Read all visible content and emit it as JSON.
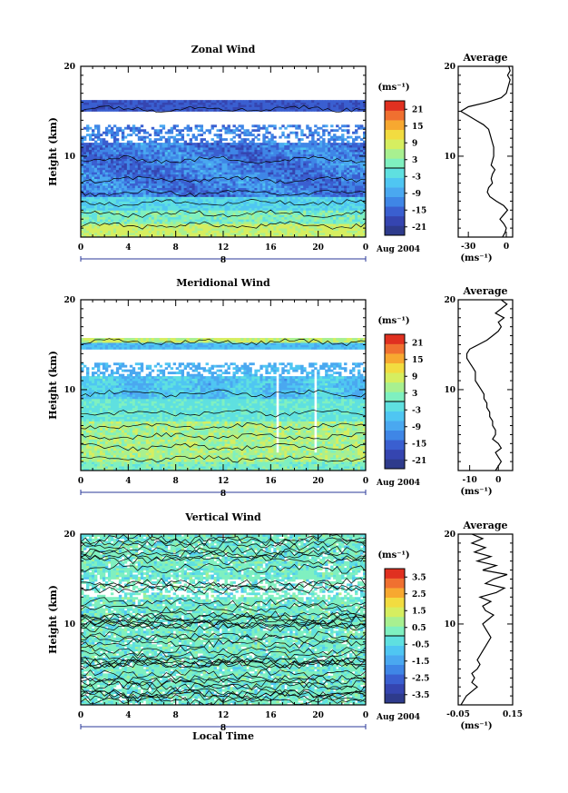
{
  "colors": {
    "scale": [
      "#2e3b8c",
      "#3545b0",
      "#3a5fd0",
      "#3f86e6",
      "#4aa8f0",
      "#4fc6f2",
      "#5fe0e0",
      "#7ff0c0",
      "#a8f090",
      "#d6ee60",
      "#f2dc40",
      "#f7a830",
      "#f07030",
      "#e03020"
    ],
    "missing": "#ffffff",
    "contour": "#000000"
  },
  "chart_data": [
    {
      "type": "heatmap",
      "title": "Zonal Wind",
      "xlabel": "",
      "ylabel": "Height (km)",
      "x_ticks": [
        "0",
        "4",
        "8",
        "12",
        "16",
        "20",
        "0"
      ],
      "y_ticks": [
        "10",
        "20"
      ],
      "xlim": [
        0,
        24
      ],
      "ylim": [
        1,
        20
      ],
      "date_ticks": [
        "8"
      ],
      "date_label": "Aug 2004",
      "colorbar": {
        "unit": "(ms⁻¹)",
        "ticks": [
          "21",
          "15",
          "9",
          "3",
          "-3",
          "-9",
          "-15",
          "-21"
        ],
        "range": [
          -21,
          21
        ]
      },
      "profile": {
        "title": "Average",
        "x_ticks": [
          "-30",
          "0"
        ],
        "xlim": [
          -38,
          5
        ],
        "unit": "(ms⁻¹)",
        "height": [
          1.0,
          1.5,
          2,
          2.5,
          3,
          3.5,
          4,
          4.5,
          5,
          5.5,
          6,
          6.5,
          7,
          7.5,
          8,
          8.5,
          9,
          9.5,
          10,
          10.5,
          11,
          11.5,
          12,
          12.5,
          13,
          13.5,
          14,
          14.5,
          15,
          15.5,
          16,
          16.5,
          17,
          17.5,
          18,
          18.5,
          19,
          19.5,
          20
        ],
        "value": [
          -3,
          -1,
          0,
          -2,
          -5,
          -2,
          1,
          -2,
          -8,
          -13,
          -15,
          -14,
          -11,
          -12,
          -11,
          -9,
          -12,
          -11,
          -10,
          -10,
          -10,
          -11,
          -12,
          -13,
          -14,
          -18,
          -24,
          -30,
          -36,
          -30,
          -15,
          -4,
          0,
          1,
          2,
          3,
          1,
          3,
          2
        ]
      }
    },
    {
      "type": "heatmap",
      "title": "Meridional Wind",
      "xlabel": "",
      "ylabel": "Height (km)",
      "x_ticks": [
        "0",
        "4",
        "8",
        "12",
        "16",
        "20",
        "0"
      ],
      "y_ticks": [
        "10",
        "20"
      ],
      "xlim": [
        0,
        24
      ],
      "ylim": [
        1,
        20
      ],
      "date_ticks": [
        "8"
      ],
      "date_label": "Aug 2004",
      "colorbar": {
        "unit": "(ms⁻¹)",
        "ticks": [
          "21",
          "15",
          "9",
          "3",
          "-3",
          "-9",
          "-15",
          "-21"
        ],
        "range": [
          -21,
          21
        ]
      },
      "profile": {
        "title": "Average",
        "x_ticks": [
          "-10",
          "0"
        ],
        "xlim": [
          -14,
          5
        ],
        "unit": "(ms⁻¹)",
        "height": [
          1.0,
          1.5,
          2,
          2.5,
          3,
          3.5,
          4,
          4.5,
          5,
          5.5,
          6,
          6.5,
          7,
          7.5,
          8,
          8.5,
          9,
          9.5,
          10,
          10.5,
          11,
          11.5,
          12,
          12.5,
          13,
          13.5,
          14,
          14.5,
          15,
          15.5,
          16,
          16.5,
          17,
          17.5,
          18,
          18.5,
          19,
          19.5,
          20
        ],
        "value": [
          -1,
          0,
          1,
          0,
          -1,
          1,
          0,
          -2,
          -1,
          -1,
          -2,
          -2,
          -3,
          -3,
          -4,
          -4,
          -5,
          -5,
          -6,
          -7,
          -8,
          -8,
          -8,
          -9,
          -10,
          -11,
          -11,
          -10,
          -7,
          -4,
          -2,
          0,
          1,
          0,
          2,
          -1,
          1,
          3,
          1
        ]
      }
    },
    {
      "type": "heatmap",
      "title": "Vertical Wind",
      "xlabel": "Local Time",
      "ylabel": "Height (km)",
      "x_ticks": [
        "0",
        "4",
        "8",
        "12",
        "16",
        "20",
        "0"
      ],
      "y_ticks": [
        "10",
        "20"
      ],
      "xlim": [
        0,
        24
      ],
      "ylim": [
        1,
        20
      ],
      "date_ticks": [
        "8"
      ],
      "date_label": "Aug 2004",
      "colorbar": {
        "unit": "(ms⁻¹)",
        "ticks": [
          "3.5",
          "2.5",
          "1.5",
          "0.5",
          "-0.5",
          "-1.5",
          "-2.5",
          "-3.5"
        ],
        "range": [
          -3.5,
          3.5
        ]
      },
      "profile": {
        "title": "Average",
        "x_ticks": [
          "-0.05",
          "0.15"
        ],
        "xlim": [
          -0.05,
          0.15
        ],
        "unit": "(ms⁻¹)",
        "height": [
          1.0,
          1.5,
          2,
          2.5,
          3,
          3.5,
          4,
          4.5,
          5,
          5.5,
          6,
          6.5,
          7,
          7.5,
          8,
          8.5,
          9,
          9.5,
          10,
          10.5,
          11,
          11.5,
          12,
          12.5,
          13,
          13.5,
          14,
          14.5,
          15,
          15.5,
          16,
          16.5,
          17,
          17.5,
          18,
          18.5,
          19,
          19.5,
          20
        ],
        "value": [
          -0.04,
          -0.03,
          -0.02,
          0.0,
          0.02,
          0.0,
          0.01,
          0.0,
          0.02,
          0.03,
          0.02,
          0.03,
          0.04,
          0.05,
          0.06,
          0.07,
          0.06,
          0.05,
          0.04,
          0.06,
          0.08,
          0.05,
          0.04,
          0.07,
          0.03,
          0.09,
          0.12,
          0.05,
          0.08,
          0.13,
          0.04,
          0.09,
          0.02,
          0.07,
          0.01,
          0.05,
          0.0,
          0.04,
          0.0
        ]
      }
    }
  ]
}
